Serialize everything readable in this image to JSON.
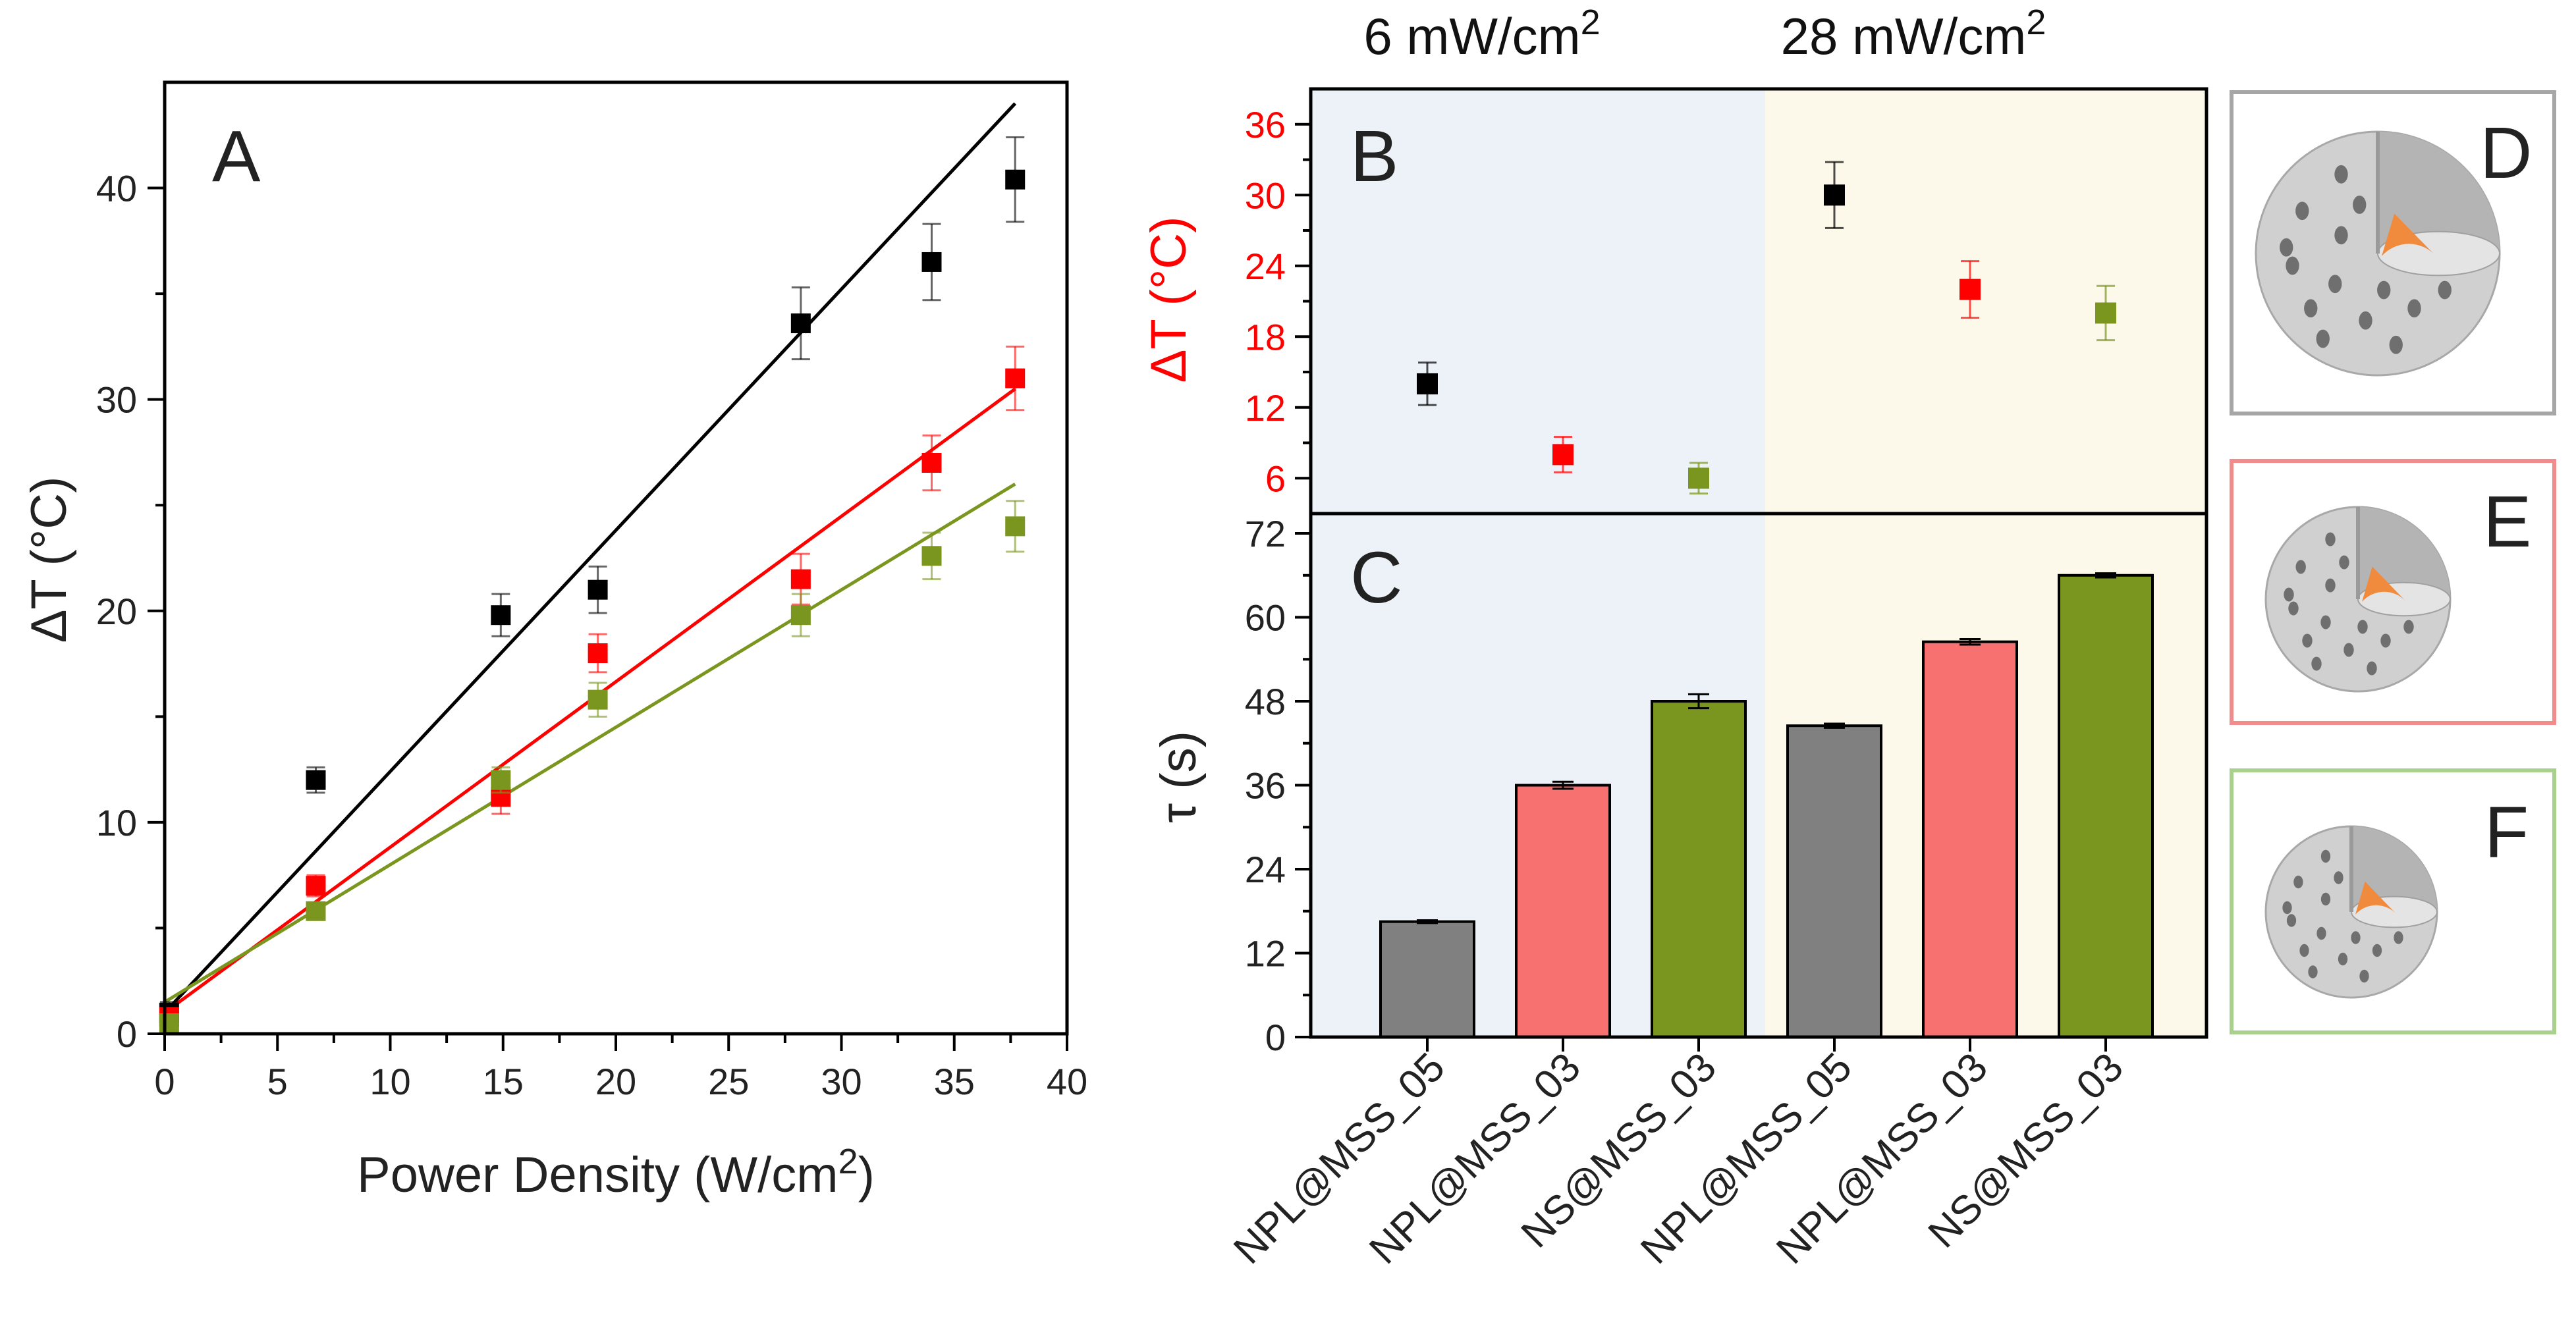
{
  "chart_data": [
    {
      "panel": "A",
      "type": "scatter",
      "xlabel": "Power Density (W/cm",
      "xlabel_sup": "2",
      "xlabel_close": ")",
      "ylabel": "ΔT (°C)",
      "xlim": [
        0,
        40
      ],
      "ylim": [
        0,
        45
      ],
      "xticks": [
        0,
        5,
        10,
        15,
        20,
        25,
        30,
        35,
        40
      ],
      "yticks": [
        0,
        10,
        20,
        30,
        40
      ],
      "series": [
        {
          "name": "NPL@MSS_05",
          "color": "#000000",
          "x": [
            0.2,
            6.7,
            14.9,
            19.2,
            28.2,
            34.0,
            37.7
          ],
          "y": [
            1.0,
            12.0,
            19.8,
            21.0,
            33.6,
            36.5,
            40.4
          ],
          "err": [
            0.5,
            0.6,
            1.0,
            1.1,
            1.7,
            1.8,
            2.0
          ],
          "fit": [
            [
              0,
              1.0
            ],
            [
              37.7,
              44.0
            ]
          ]
        },
        {
          "name": "NPL@MSS_03",
          "color": "#ff0000",
          "x": [
            0.2,
            6.7,
            14.9,
            19.2,
            28.2,
            34.0,
            37.7
          ],
          "y": [
            0.8,
            7.0,
            11.2,
            18.0,
            21.5,
            27.0,
            31.0
          ],
          "err": [
            0.4,
            0.5,
            0.8,
            0.9,
            1.2,
            1.3,
            1.5
          ],
          "fit": [
            [
              0,
              1.0
            ],
            [
              37.7,
              30.5
            ]
          ]
        },
        {
          "name": "NS@MSS_03",
          "color": "#7a961f",
          "x": [
            0.2,
            6.7,
            14.9,
            19.2,
            28.2,
            34.0,
            37.7
          ],
          "y": [
            0.5,
            5.8,
            12.0,
            15.8,
            19.8,
            22.6,
            24.0
          ],
          "err": [
            0.3,
            0.4,
            0.6,
            0.8,
            1.0,
            1.1,
            1.2
          ],
          "fit": [
            [
              0,
              1.5
            ],
            [
              37.7,
              26.0
            ]
          ]
        }
      ]
    },
    {
      "panel": "B",
      "type": "scatter",
      "ylabel": "ΔT (°C)",
      "ylim": [
        3,
        39
      ],
      "yticks": [
        6,
        12,
        18,
        24,
        30,
        36
      ],
      "points": [
        {
          "cat": 0,
          "value": 14,
          "err": 1.8,
          "color": "#000000"
        },
        {
          "cat": 1,
          "value": 8,
          "err": 1.5,
          "color": "#ff0000"
        },
        {
          "cat": 2,
          "value": 6,
          "err": 1.3,
          "color": "#7a961f"
        },
        {
          "cat": 3,
          "value": 30,
          "err": 2.8,
          "color": "#000000"
        },
        {
          "cat": 4,
          "value": 22,
          "err": 2.4,
          "color": "#ff0000"
        },
        {
          "cat": 5,
          "value": 20,
          "err": 2.3,
          "color": "#7a961f"
        }
      ]
    },
    {
      "panel": "C",
      "type": "bar",
      "ylabel": "τ (s)",
      "ylim": [
        0,
        72
      ],
      "yticks": [
        0,
        12,
        24,
        36,
        48,
        60,
        72
      ],
      "categories": [
        "NPL@MSS_05",
        "NPL@MSS_03",
        "NS@MSS_03",
        "NPL@MSS_05",
        "NPL@MSS_03",
        "NS@MSS_03"
      ],
      "values": [
        16.5,
        36.0,
        48.0,
        44.5,
        56.5,
        66.0
      ],
      "errors": [
        0.2,
        0.5,
        1.0,
        0.3,
        0.4,
        0.3
      ],
      "colors": [
        "#808080",
        "#f87171",
        "#7a961f",
        "#808080",
        "#f87171",
        "#7a961f"
      ]
    }
  ],
  "headers": {
    "low_value": "6 mW/cm",
    "low_sup": "2",
    "high_value": "28 mW/cm",
    "high_sup": "2"
  },
  "panels": {
    "A": "A",
    "B": "B",
    "C": "C",
    "D": "D",
    "E": "E",
    "F": "F"
  },
  "colors": {
    "left_region": "#edf2f9",
    "right_region": "#fcf9ea",
    "frame_D": "#a6a6a6",
    "frame_E": "#f28b8b",
    "frame_F": "#a9d18e",
    "shell": "#d0d0d0",
    "pore": "#6f6f6f",
    "core": "#f08a3c"
  },
  "icons": [
    "nanoparticle-illustration-icon"
  ]
}
